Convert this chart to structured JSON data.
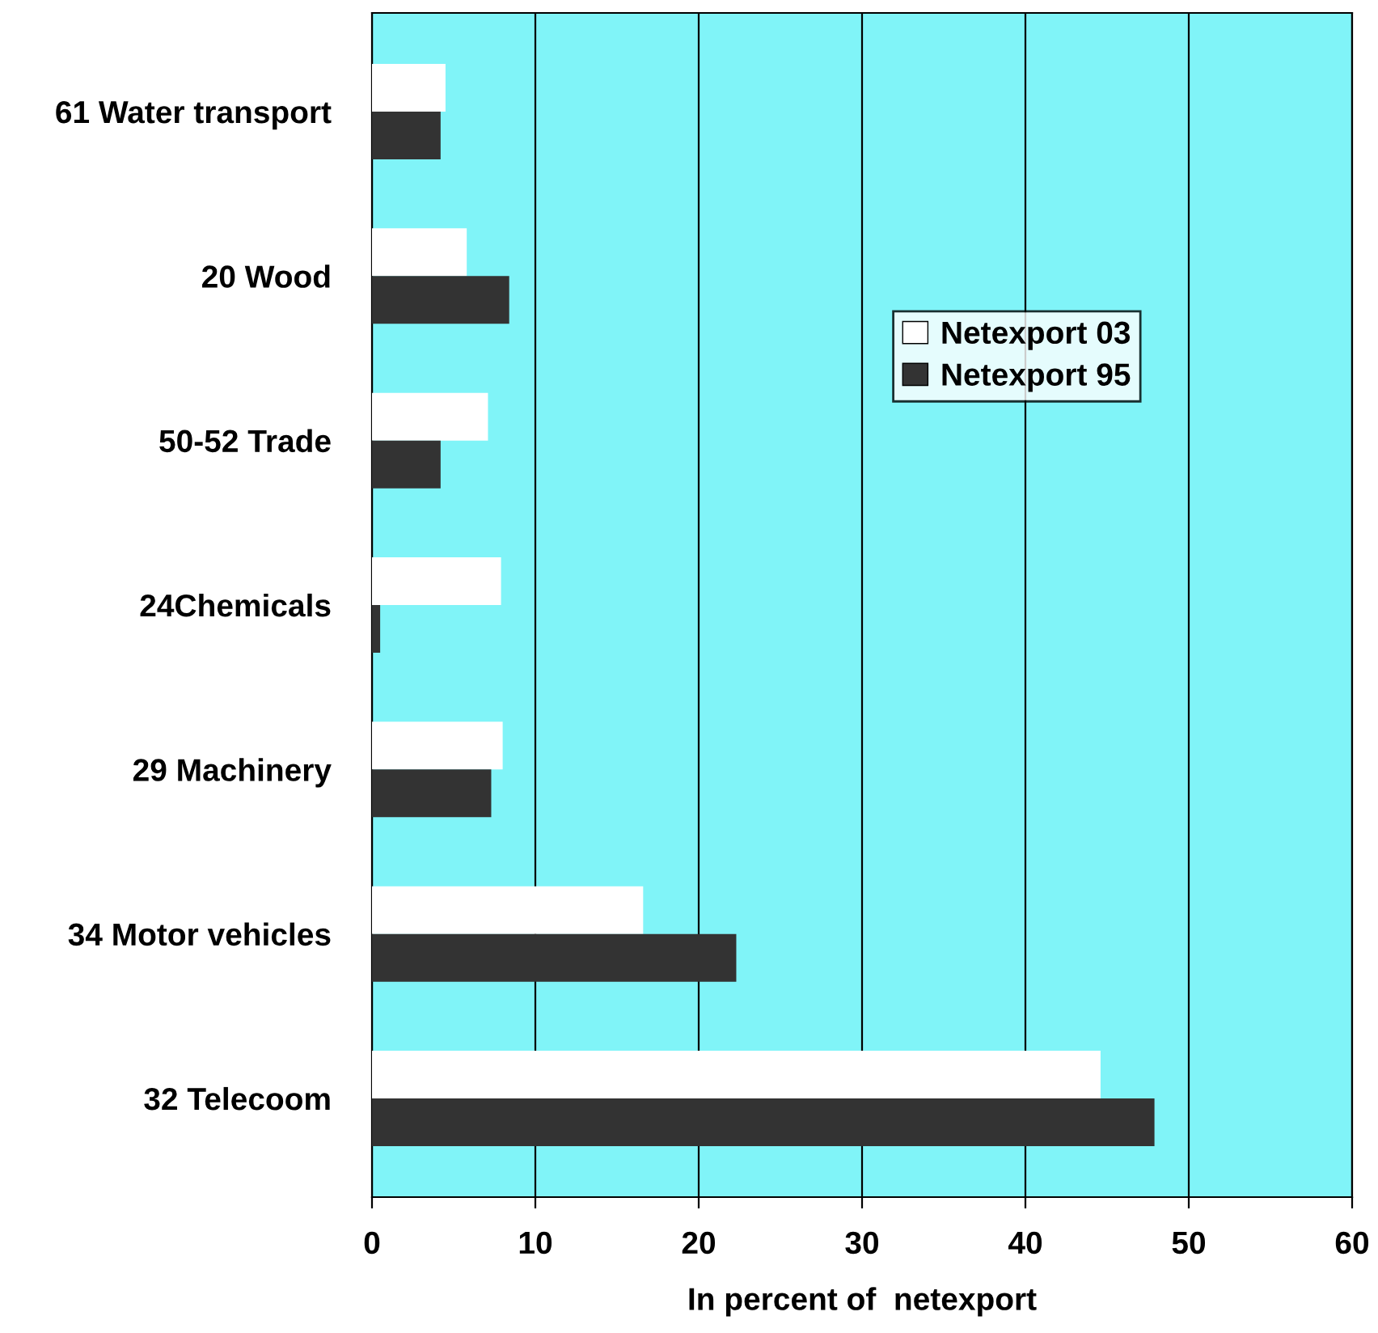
{
  "chart_data": {
    "type": "bar",
    "orientation": "horizontal",
    "xlabel": "In percent of  netexport",
    "categories": [
      "61 Water transport",
      "20 Wood",
      "50-52 Trade",
      "24Chemicals",
      "29 Machinery",
      "34 Motor vehicles",
      "32 Telecoom"
    ],
    "series": [
      {
        "name": "Netexport 03",
        "color": "#ffffff",
        "values": [
          4.5,
          5.8,
          7.1,
          7.9,
          8.0,
          16.6,
          44.6
        ]
      },
      {
        "name": "Netexport 95",
        "color": "#333333",
        "values": [
          4.2,
          8.4,
          4.2,
          0.5,
          7.3,
          22.3,
          47.9
        ]
      }
    ],
    "xlim": [
      0,
      60
    ],
    "xticks": [
      0,
      10,
      20,
      30,
      40,
      50,
      60
    ],
    "grid": "x",
    "legend": "right"
  }
}
